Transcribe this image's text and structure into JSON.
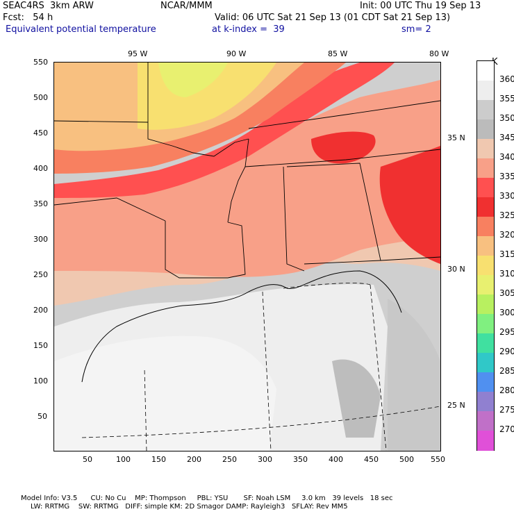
{
  "header": {
    "model": "SEAC4RS  3km ARW",
    "org": "NCAR/MMM",
    "init": "Init: 00 UTC Thu 19 Sep 13",
    "fcst": "Fcst:   54 h",
    "valid": "Valid: 06 UTC Sat 21 Sep 13 (01 CDT Sat 21 Sep 13)",
    "field": "Equivalent potential temperature",
    "level": "at k-index =  39",
    "smooth": "sm= 2"
  },
  "axes": {
    "x_ticks": [
      "50",
      "100",
      "150",
      "200",
      "250",
      "300",
      "350",
      "400",
      "450",
      "500",
      "550"
    ],
    "y_ticks": [
      "550",
      "500",
      "450",
      "400",
      "350",
      "300",
      "250",
      "200",
      "150",
      "100",
      "50"
    ],
    "lon_labels": [
      "95 W",
      "90 W",
      "85 W",
      "80 W"
    ],
    "lat_labels": [
      "35 N",
      "30 N",
      "25 N"
    ]
  },
  "colorbar": {
    "unit": "K",
    "levels": [
      "360",
      "355",
      "350",
      "345",
      "340",
      "335",
      "330",
      "325",
      "320",
      "315",
      "310",
      "305",
      "300",
      "295",
      "290",
      "285",
      "280",
      "275",
      "270"
    ],
    "colors": [
      "#ffffff",
      "#eeeeee",
      "#cccccc",
      "#bbbbbb",
      "#f0c8b0",
      "#f8a088",
      "#ff5050",
      "#f03030",
      "#f88060",
      "#f8c080",
      "#f8e070",
      "#e8f070",
      "#b8f060",
      "#80f080",
      "#40e0a0",
      "#30c8c8",
      "#5090f0",
      "#9080d0",
      "#c070c8",
      "#e050d8"
    ]
  },
  "footer": {
    "line1": "Model Info: V3.5      CU: No Cu    MP: Thompson     PBL: YSU       SF: Noah LSM     3.0 km   39 levels   18 sec",
    "line2": "LW: RRTMG    SW: RRTMG   DIFF: simple KM: 2D Smagor DAMP: Rayleigh3   SFLAY: Rev MM5"
  }
}
